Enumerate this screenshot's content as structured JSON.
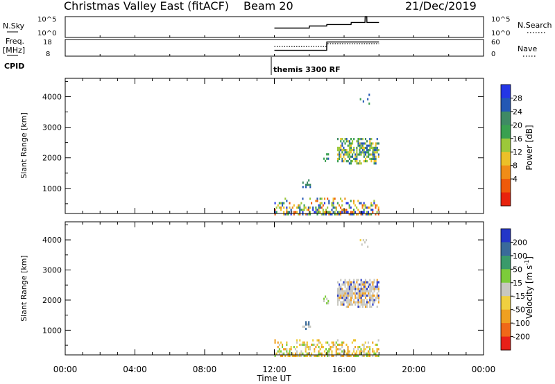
{
  "header": {
    "station": "Christmas Valley East (fitACF)",
    "beam": "Beam 20",
    "date": "21/Dec/2019"
  },
  "left_labels": {
    "nsky": "N.Sky",
    "freq_line1": "Freq.",
    "freq_line2": "[MHz]",
    "cpid": "CPID"
  },
  "right_labels": {
    "nsearch": "N.Search",
    "nave": "Nave"
  },
  "cpid_name": "themis 3300 RF",
  "chart_data": [
    {
      "type": "line",
      "name": "noise",
      "left_ticks": [
        "10^5",
        "10^0"
      ],
      "right_ticks": [
        "10^5",
        "10^0"
      ],
      "series": [
        {
          "name": "N.Sky",
          "style": "solid",
          "x": [
            12.0,
            14.0,
            14.01,
            15.0,
            15.01,
            16.4,
            16.41,
            17.2,
            17.21,
            17.3,
            17.31,
            18.0
          ],
          "y": [
            0.45,
            0.45,
            0.55,
            0.55,
            0.62,
            0.62,
            0.72,
            0.72,
            1.0,
            1.0,
            0.72,
            0.72
          ]
        }
      ],
      "xlim": [
        0,
        24
      ]
    },
    {
      "type": "line",
      "name": "frequency",
      "left_ticks": [
        "18",
        "8"
      ],
      "right_ticks": [
        "60",
        "0"
      ],
      "series": [
        {
          "name": "Freq.",
          "style": "solid",
          "x": [
            12.0,
            15.0,
            15.01,
            18.0
          ],
          "y": [
            0.35,
            0.35,
            0.85,
            0.85
          ]
        },
        {
          "name": "Nave",
          "style": "dotted",
          "x": [
            12.0,
            15.0,
            15.01,
            18.0
          ],
          "y": [
            0.58,
            0.58,
            0.75,
            0.75
          ]
        }
      ],
      "xlim": [
        0,
        24
      ]
    },
    {
      "type": "heatmap",
      "name": "power",
      "ylabel": "Slant Range [km]",
      "yticks": [
        1000,
        2000,
        3000,
        4000
      ],
      "ylim": [
        180,
        4600
      ],
      "xlim": [
        0,
        24
      ],
      "colorbar": {
        "label": "Power [dB]",
        "ticks": [
          "28",
          "24",
          "20",
          "16",
          "12",
          "8",
          "4"
        ],
        "colors": [
          "#2436e6",
          "#2458b4",
          "#3f8a64",
          "#3aa050",
          "#9cc83a",
          "#ecc028",
          "#f08c18",
          "#ee5a0a",
          "#e8220c"
        ]
      },
      "clusters": [
        {
          "x": [
            15.6,
            18.0
          ],
          "y": [
            1850,
            2650
          ],
          "density": 0.7,
          "palette": [
            "#3f8a64",
            "#3aa050",
            "#9cc83a",
            "#ecc028",
            "#2458b4"
          ]
        },
        {
          "x": [
            14.8,
            15.1
          ],
          "y": [
            1900,
            2150
          ],
          "density": 0.6,
          "palette": [
            "#2458b4",
            "#3aa050"
          ]
        },
        {
          "x": [
            13.6,
            14.1
          ],
          "y": [
            1050,
            1300
          ],
          "density": 0.6,
          "palette": [
            "#2458b4",
            "#3f8a64"
          ]
        },
        {
          "x": [
            16.9,
            17.5
          ],
          "y": [
            3750,
            4100
          ],
          "density": 0.3,
          "palette": [
            "#2458b4",
            "#3aa050"
          ]
        },
        {
          "x": [
            12.0,
            18.0
          ],
          "y": [
            180,
            700
          ],
          "density": 0.55,
          "palette": [
            "#2436e6",
            "#2458b4",
            "#3aa050",
            "#9cc83a",
            "#ecc028",
            "#f08c18",
            "#ee5a0a"
          ]
        }
      ]
    },
    {
      "type": "heatmap",
      "name": "velocity",
      "ylabel": "Slant Range [km]",
      "yticks": [
        1000,
        2000,
        3000,
        4000
      ],
      "ylim": [
        180,
        4600
      ],
      "xlim": [
        0,
        24
      ],
      "colorbar": {
        "label": "Velocity [m s^-1]",
        "ticks": [
          "200",
          "100",
          "50",
          "15",
          "-15",
          "-50",
          "-100",
          "-200"
        ],
        "colors": [
          "#2436c8",
          "#3a6a9a",
          "#3a9a6a",
          "#7ccc3a",
          "#c8c8c0",
          "#f0d040",
          "#f0a020",
          "#f06818",
          "#e82018"
        ]
      },
      "clusters": [
        {
          "x": [
            15.6,
            18.0
          ],
          "y": [
            1800,
            2700
          ],
          "density": 0.85,
          "palette": [
            "#c8c8c0",
            "#c8c8c0",
            "#c8c8c0",
            "#c8c8c0",
            "#2436c8",
            "#f0a020"
          ]
        },
        {
          "x": [
            14.8,
            15.1
          ],
          "y": [
            1900,
            2150
          ],
          "density": 0.5,
          "palette": [
            "#c8c8c0",
            "#7ccc3a"
          ]
        },
        {
          "x": [
            13.6,
            14.1
          ],
          "y": [
            1050,
            1300
          ],
          "density": 0.5,
          "palette": [
            "#3a6a9a",
            "#c8c8c0"
          ]
        },
        {
          "x": [
            16.9,
            17.5
          ],
          "y": [
            3800,
            4100
          ],
          "density": 0.3,
          "palette": [
            "#f0d040",
            "#c8c8c0"
          ]
        },
        {
          "x": [
            12.0,
            18.0
          ],
          "y": [
            180,
            700
          ],
          "density": 0.6,
          "palette": [
            "#f0d040",
            "#f0a020",
            "#ecc028",
            "#7ccc3a",
            "#c8c8c0"
          ]
        }
      ],
      "xlabel": "Time UT",
      "xticks": [
        "00:00",
        "04:00",
        "08:00",
        "12:00",
        "16:00",
        "20:00",
        "00:00"
      ]
    }
  ]
}
